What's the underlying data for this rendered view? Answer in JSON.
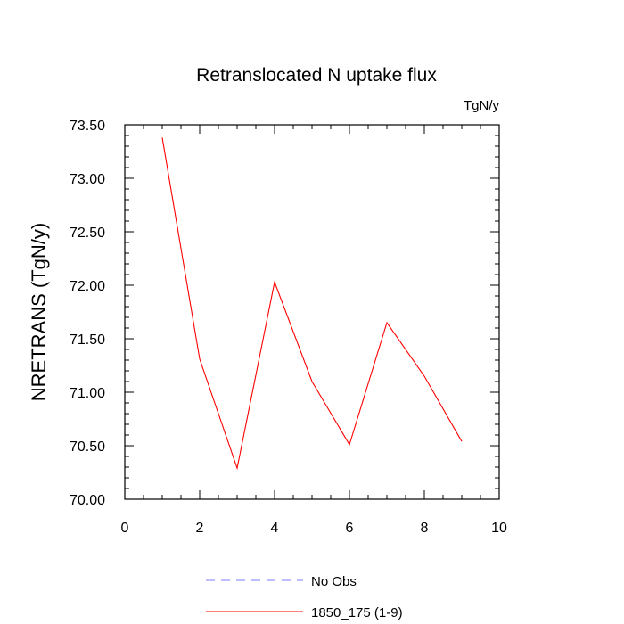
{
  "chart_data": {
    "type": "line",
    "title": "Retranslocated N uptake flux",
    "units_label": "TgN/y",
    "ylabel": "NRETRANS  (TgN/y)",
    "xlabel": "",
    "xlim": [
      0,
      10
    ],
    "ylim": [
      70.0,
      73.5
    ],
    "x_ticks": [
      0,
      2,
      4,
      6,
      8,
      10
    ],
    "x_tick_labels": [
      "0",
      "2",
      "4",
      "6",
      "8",
      "10"
    ],
    "y_ticks": [
      70.0,
      70.5,
      71.0,
      71.5,
      72.0,
      72.5,
      73.0,
      73.5
    ],
    "y_tick_labels": [
      "70.00",
      "70.50",
      "71.00",
      "71.50",
      "72.00",
      "72.50",
      "73.00",
      "73.50"
    ],
    "grid": false,
    "legend_position": "bottom",
    "series": [
      {
        "name": "1850_175 (1-9)",
        "color": "#ff0000",
        "dash": "solid",
        "x": [
          1,
          2,
          3,
          4,
          5,
          6,
          7,
          8,
          9
        ],
        "y": [
          73.38,
          71.31,
          70.29,
          72.03,
          71.1,
          70.51,
          71.65,
          71.15,
          70.54
        ]
      }
    ],
    "legend": [
      {
        "label": "No Obs",
        "color": "#7b7bff",
        "dash": "dashed"
      },
      {
        "label": "1850_175 (1-9)",
        "color": "#ff0000",
        "dash": "solid"
      }
    ]
  }
}
